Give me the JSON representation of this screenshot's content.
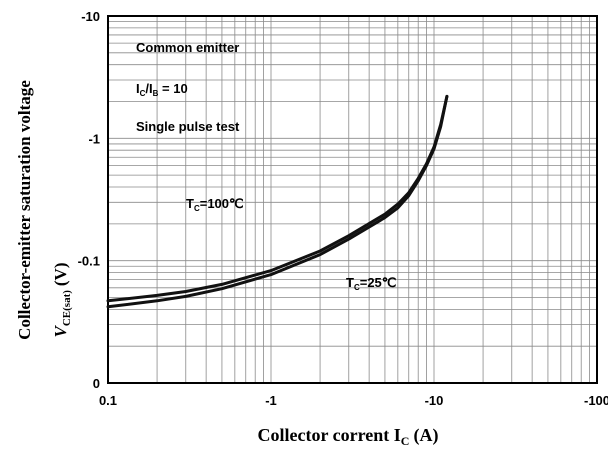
{
  "chart_data": {
    "type": "line",
    "log_x": true,
    "log_y": true,
    "xlabel": "Collector corrent I",
    "xlabel_sub": "C",
    "xlabel_unit": "(A)",
    "ylabel": "Collector-emitter saturation voltage",
    "ylabel_line2_main": "V",
    "ylabel_line2_sub": "CE(sat)",
    "ylabel_line2_unit": "(V)",
    "xlim": [
      -0.1,
      -100
    ],
    "ylim": [
      -0.01,
      -10
    ],
    "x_ticks": [
      "0.1",
      "-1",
      "-10",
      "-100"
    ],
    "y_ticks": [
      "-10",
      "-1",
      "-0.1",
      "0"
    ],
    "grid": true,
    "annotations": {
      "line1": "Common emitter",
      "line2_main": "I",
      "line2_sub1": "C",
      "line2_mid": "/I",
      "line2_sub2": "B",
      "line2_tail": " = 10",
      "line3": "Single pulse test"
    },
    "series": [
      {
        "name": "Tc=100℃",
        "label_main": "T",
        "label_sub": "C",
        "label_tail": "=100℃",
        "x": [
          -0.1,
          -0.2,
          -0.3,
          -0.5,
          -1,
          -2,
          -3,
          -5,
          -6,
          -7,
          -8,
          -9,
          -10,
          -11,
          -12
        ],
        "y": [
          -0.047,
          -0.052,
          -0.056,
          -0.064,
          -0.083,
          -0.12,
          -0.16,
          -0.24,
          -0.29,
          -0.36,
          -0.47,
          -0.62,
          -0.85,
          -1.3,
          -2.2
        ]
      },
      {
        "name": "Tc=25℃",
        "label_main": "T",
        "label_sub": "C",
        "label_tail": "=25℃",
        "x": [
          -0.1,
          -0.2,
          -0.3,
          -0.5,
          -1,
          -2,
          -3,
          -5,
          -6,
          -7,
          -8,
          -9,
          -10,
          -11,
          -12
        ],
        "y": [
          -0.042,
          -0.047,
          -0.051,
          -0.059,
          -0.077,
          -0.112,
          -0.15,
          -0.225,
          -0.27,
          -0.34,
          -0.45,
          -0.6,
          -0.82,
          -1.25,
          -2.2
        ]
      }
    ]
  }
}
